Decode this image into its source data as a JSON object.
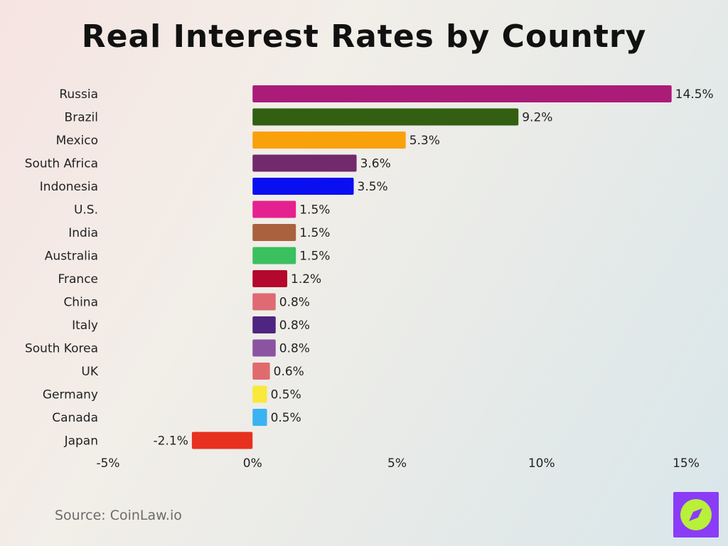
{
  "title": "Real Interest Rates by Country",
  "source": "Source: CoinLaw.io",
  "logo_icon": "compass-icon",
  "chart_data": {
    "type": "bar",
    "orientation": "horizontal",
    "title": "Real Interest Rates by Country",
    "xlabel": "",
    "ylabel": "",
    "xlim": [
      -5,
      15
    ],
    "x_ticks": [
      -5,
      0,
      5,
      10,
      15
    ],
    "x_tick_labels": [
      "-5%",
      "0%",
      "5%",
      "10%",
      "15%"
    ],
    "grid": false,
    "categories": [
      "Russia",
      "Brazil",
      "Mexico",
      "South Africa",
      "Indonesia",
      "U.S.",
      "India",
      "Australia",
      "France",
      "China",
      "Italy",
      "South Korea",
      "UK",
      "Germany",
      "Canada",
      "Japan"
    ],
    "values": [
      14.5,
      9.2,
      5.3,
      3.6,
      3.5,
      1.5,
      1.5,
      1.5,
      1.2,
      0.8,
      0.8,
      0.8,
      0.6,
      0.5,
      0.5,
      -2.1
    ],
    "value_labels": [
      "14.5%",
      "9.2%",
      "5.3%",
      "3.6%",
      "3.5%",
      "1.5%",
      "1.5%",
      "1.5%",
      "1.2%",
      "0.8%",
      "0.8%",
      "0.8%",
      "0.6%",
      "0.5%",
      "0.5%",
      "-2.1%"
    ],
    "colors": [
      "#ab1b78",
      "#325f12",
      "#f9a10b",
      "#722a6c",
      "#0a0ff2",
      "#e5218f",
      "#a8623d",
      "#3bc05f",
      "#b4082c",
      "#df6a73",
      "#4e2580",
      "#8a54a3",
      "#e06b6e",
      "#f9e93b",
      "#3ab3f2",
      "#e8301f"
    ]
  }
}
